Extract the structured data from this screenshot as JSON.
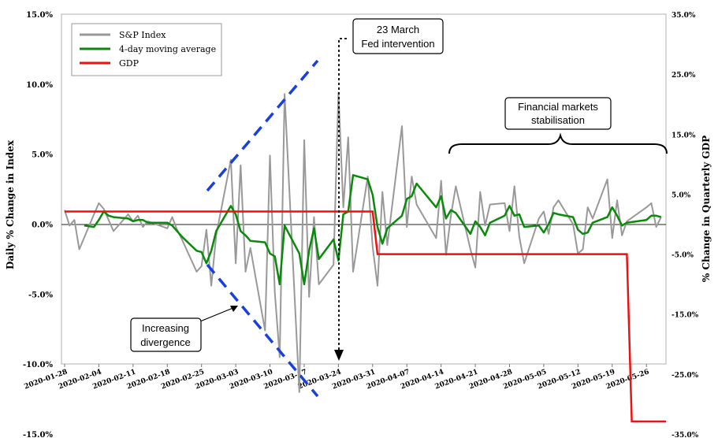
{
  "chart_data": {
    "type": "line",
    "left_axis": {
      "label": "Daily % Change in Index",
      "ylim": [
        -15,
        15
      ],
      "ticks": [
        "15.0%",
        "10.0%",
        "5.0%",
        "0.0%",
        "-5.0%",
        "-10.0%",
        "-15.0%"
      ],
      "tick_values": [
        15,
        10,
        5,
        0,
        -5,
        -10,
        -15
      ]
    },
    "right_axis": {
      "label": "% Change in Quarterly GDP",
      "ylim": [
        -35,
        35
      ],
      "ticks": [
        "35.0%",
        "25.0%",
        "15.0%",
        "5.0%",
        "-5.0%",
        "-15.0%",
        "-25.0%",
        "-35.0%"
      ],
      "tick_values": [
        35,
        25,
        15,
        5,
        -5,
        -15,
        -25,
        -35
      ]
    },
    "x_axis": {
      "start": "2020-01-28",
      "end": "2020-05-30",
      "ticks": [
        "2020-01-28",
        "2020-02-04",
        "2020-02-11",
        "2020-02-18",
        "2020-02-25",
        "2020-03-03",
        "2020-03-10",
        "2020-03-17",
        "2020-03-24",
        "2020-03-31",
        "2020-04-07",
        "2020-04-14",
        "2020-04-21",
        "2020-04-28",
        "2020-05-05",
        "2020-05-12",
        "2020-05-19",
        "2020-05-26"
      ]
    },
    "grid": false,
    "legend": {
      "position": "top-left"
    },
    "series": [
      {
        "name": "S&P Index",
        "color": "#999999",
        "axis": "left",
        "x": [
          "2020-01-28",
          "2020-01-29",
          "2020-01-30",
          "2020-01-31",
          "2020-02-03",
          "2020-02-04",
          "2020-02-05",
          "2020-02-06",
          "2020-02-07",
          "2020-02-10",
          "2020-02-11",
          "2020-02-12",
          "2020-02-13",
          "2020-02-14",
          "2020-02-18",
          "2020-02-19",
          "2020-02-20",
          "2020-02-21",
          "2020-02-24",
          "2020-02-25",
          "2020-02-26",
          "2020-02-27",
          "2020-02-28",
          "2020-03-02",
          "2020-03-03",
          "2020-03-04",
          "2020-03-05",
          "2020-03-06",
          "2020-03-09",
          "2020-03-10",
          "2020-03-11",
          "2020-03-12",
          "2020-03-13",
          "2020-03-16",
          "2020-03-17",
          "2020-03-18",
          "2020-03-19",
          "2020-03-20",
          "2020-03-23",
          "2020-03-24",
          "2020-03-25",
          "2020-03-26",
          "2020-03-27",
          "2020-03-30",
          "2020-03-31",
          "2020-04-01",
          "2020-04-02",
          "2020-04-03",
          "2020-04-06",
          "2020-04-07",
          "2020-04-08",
          "2020-04-09",
          "2020-04-13",
          "2020-04-14",
          "2020-04-15",
          "2020-04-16",
          "2020-04-17",
          "2020-04-20",
          "2020-04-21",
          "2020-04-22",
          "2020-04-23",
          "2020-04-24",
          "2020-04-27",
          "2020-04-28",
          "2020-04-29",
          "2020-04-30",
          "2020-05-01",
          "2020-05-04",
          "2020-05-05",
          "2020-05-06",
          "2020-05-07",
          "2020-05-08",
          "2020-05-11",
          "2020-05-12",
          "2020-05-13",
          "2020-05-14",
          "2020-05-15",
          "2020-05-18",
          "2020-05-19",
          "2020-05-20",
          "2020-05-21",
          "2020-05-22",
          "2020-05-26",
          "2020-05-27",
          "2020-05-28",
          "2020-05-29"
        ],
        "values": [
          1.0,
          -0.1,
          0.3,
          -1.8,
          0.7,
          1.5,
          1.1,
          0.3,
          -0.5,
          0.7,
          0.2,
          0.6,
          -0.2,
          0.2,
          -0.3,
          0.5,
          -0.4,
          -1.1,
          -3.4,
          -3.0,
          -0.4,
          -4.4,
          -0.8,
          4.6,
          -2.8,
          4.2,
          -3.4,
          -1.7,
          -7.6,
          4.9,
          -4.9,
          -9.5,
          9.3,
          -12.0,
          6.0,
          -5.2,
          0.5,
          -4.3,
          -2.9,
          9.4,
          1.2,
          6.2,
          -3.4,
          3.4,
          -1.6,
          -4.4,
          2.3,
          -1.5,
          7.0,
          -0.2,
          3.4,
          1.4,
          -1.0,
          3.1,
          -2.2,
          0.6,
          2.7,
          -1.8,
          -3.1,
          2.3,
          -0.1,
          1.4,
          1.5,
          -0.5,
          2.7,
          -0.9,
          -2.8,
          0.4,
          0.9,
          -0.7,
          1.2,
          1.7,
          0.0,
          -2.1,
          -1.8,
          1.2,
          0.4,
          3.2,
          -1.0,
          1.7,
          -0.8,
          0.2,
          1.2,
          1.5,
          -0.2,
          0.5
        ]
      },
      {
        "name": "4-day moving average",
        "color": "#0a8a0a",
        "axis": "left",
        "x": [
          "2020-02-01",
          "2020-02-03",
          "2020-02-04",
          "2020-02-05",
          "2020-02-06",
          "2020-02-07",
          "2020-02-10",
          "2020-02-11",
          "2020-02-12",
          "2020-02-13",
          "2020-02-14",
          "2020-02-18",
          "2020-02-19",
          "2020-02-20",
          "2020-02-21",
          "2020-02-24",
          "2020-02-25",
          "2020-02-26",
          "2020-02-27",
          "2020-02-28",
          "2020-03-02",
          "2020-03-03",
          "2020-03-04",
          "2020-03-05",
          "2020-03-06",
          "2020-03-09",
          "2020-03-10",
          "2020-03-11",
          "2020-03-12",
          "2020-03-13",
          "2020-03-16",
          "2020-03-17",
          "2020-03-18",
          "2020-03-19",
          "2020-03-20",
          "2020-03-23",
          "2020-03-24",
          "2020-03-25",
          "2020-03-26",
          "2020-03-27",
          "2020-03-30",
          "2020-03-31",
          "2020-04-01",
          "2020-04-02",
          "2020-04-03",
          "2020-04-06",
          "2020-04-07",
          "2020-04-08",
          "2020-04-09",
          "2020-04-13",
          "2020-04-14",
          "2020-04-15",
          "2020-04-16",
          "2020-04-17",
          "2020-04-20",
          "2020-04-21",
          "2020-04-22",
          "2020-04-23",
          "2020-04-24",
          "2020-04-27",
          "2020-04-28",
          "2020-04-29",
          "2020-04-30",
          "2020-05-01",
          "2020-05-04",
          "2020-05-05",
          "2020-05-06",
          "2020-05-07",
          "2020-05-08",
          "2020-05-11",
          "2020-05-12",
          "2020-05-13",
          "2020-05-14",
          "2020-05-15",
          "2020-05-18",
          "2020-05-19",
          "2020-05-20",
          "2020-05-21",
          "2020-05-22",
          "2020-05-26",
          "2020-05-27",
          "2020-05-28",
          "2020-05-29"
        ],
        "values": [
          -0.1,
          -0.2,
          0.3,
          0.9,
          0.6,
          0.5,
          0.4,
          0.2,
          0.3,
          0.3,
          0.1,
          0.1,
          -0.1,
          -0.5,
          -0.9,
          -1.9,
          -2.0,
          -2.8,
          -1.9,
          -0.5,
          1.3,
          0.7,
          -0.5,
          -0.8,
          -1.2,
          -1.3,
          -2.1,
          -2.3,
          -4.3,
          -0.1,
          -2.1,
          -4.3,
          -1.9,
          -0.3,
          -2.5,
          -1.1,
          -2.6,
          0.7,
          0.9,
          3.5,
          3.2,
          2.1,
          -0.2,
          -1.4,
          -0.3,
          0.6,
          1.8,
          2.0,
          2.9,
          1.2,
          2.0,
          0.4,
          1.0,
          0.8,
          -0.7,
          0.2,
          -0.2,
          -0.8,
          0.1,
          0.6,
          1.3,
          0.6,
          0.7,
          -0.2,
          -0.1,
          -0.6,
          0.0,
          0.8,
          0.7,
          0.5,
          -0.4,
          -0.7,
          -0.6,
          0.1,
          0.5,
          1.2,
          0.6,
          -0.1,
          0.1,
          0.3,
          0.6,
          0.6,
          0.5
        ]
      },
      {
        "name": "GDP",
        "color": "#ee1111",
        "axis": "right",
        "x": [
          "2020-01-28",
          "2020-03-31",
          "2020-04-01",
          "2020-05-22",
          "2020-05-23",
          "2020-05-30"
        ],
        "values": [
          2.1,
          2.1,
          -5.0,
          -5.0,
          -32.9,
          -32.9
        ]
      }
    ],
    "annotations": [
      {
        "id": "fed",
        "lines": [
          "23 March",
          "Fed intervention"
        ],
        "date": "2020-03-23"
      },
      {
        "id": "divergence",
        "lines": [
          "Increasing",
          "divergence"
        ]
      },
      {
        "id": "stabilisation",
        "lines": [
          "Financial markets",
          "stabilisation"
        ]
      }
    ]
  }
}
